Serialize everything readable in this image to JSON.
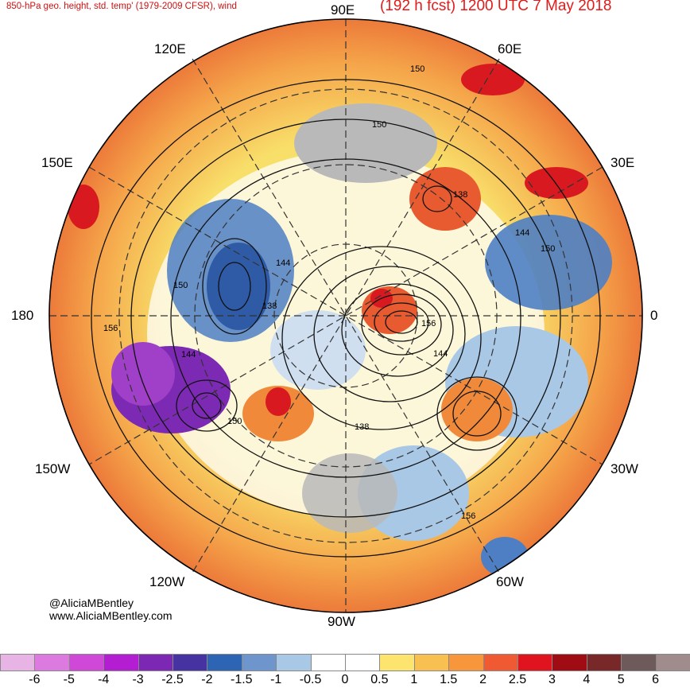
{
  "header": {
    "left_title": "850-hPa geo. height, std. temp' (1979-2009 CFSR), wind",
    "right_title": "(192 h fcst) 1200 UTC 7 May 2018"
  },
  "longitude_labels": {
    "lon_90e": "90E",
    "lon_120e": "120E",
    "lon_60e": "60E",
    "lon_150e": "150E",
    "lon_30e": "30E",
    "lon_180": "180",
    "lon_0": "0",
    "lon_150w": "150W",
    "lon_30w": "30W",
    "lon_120w": "120W",
    "lon_60w": "60W",
    "lon_90w": "90W"
  },
  "contour_labels": [
    "150",
    "150",
    "138",
    "144",
    "150",
    "144",
    "150",
    "138",
    "156",
    "156",
    "144",
    "144",
    "150",
    "138",
    "156"
  ],
  "credits": {
    "handle": "@AliciaMBentley",
    "website": "www.AliciaMBentley.com"
  },
  "colorbar": {
    "colors": [
      "#e8b4e6",
      "#dc7ae0",
      "#d048d8",
      "#b41ed2",
      "#7c28b4",
      "#4632a0",
      "#2e64b4",
      "#6e96cc",
      "#a8c8e6",
      "#ffffff",
      "#ffffff",
      "#fce46e",
      "#f8c050",
      "#f8963c",
      "#f05a32",
      "#e0141e",
      "#a00c14",
      "#782828",
      "#6e5a5a",
      "#a08c8c"
    ],
    "ticks": [
      "-6",
      "-5",
      "-4",
      "-3",
      "-2.5",
      "-2",
      "-1.5",
      "-1",
      "-0.5",
      "0",
      "0.5",
      "1",
      "1.5",
      "2",
      "2.5",
      "3",
      "4",
      "5",
      "6"
    ]
  },
  "map_colors": {
    "warm": "#f5a54a",
    "warm_strong": "#e85a30",
    "hot": "#d81a20",
    "neutral_yellow": "#f8df6a",
    "cool": "#a9c8e6",
    "cold": "#4e7fc4",
    "very_cold": "#7c2ab4",
    "land_gray": "#b9b9b9"
  }
}
